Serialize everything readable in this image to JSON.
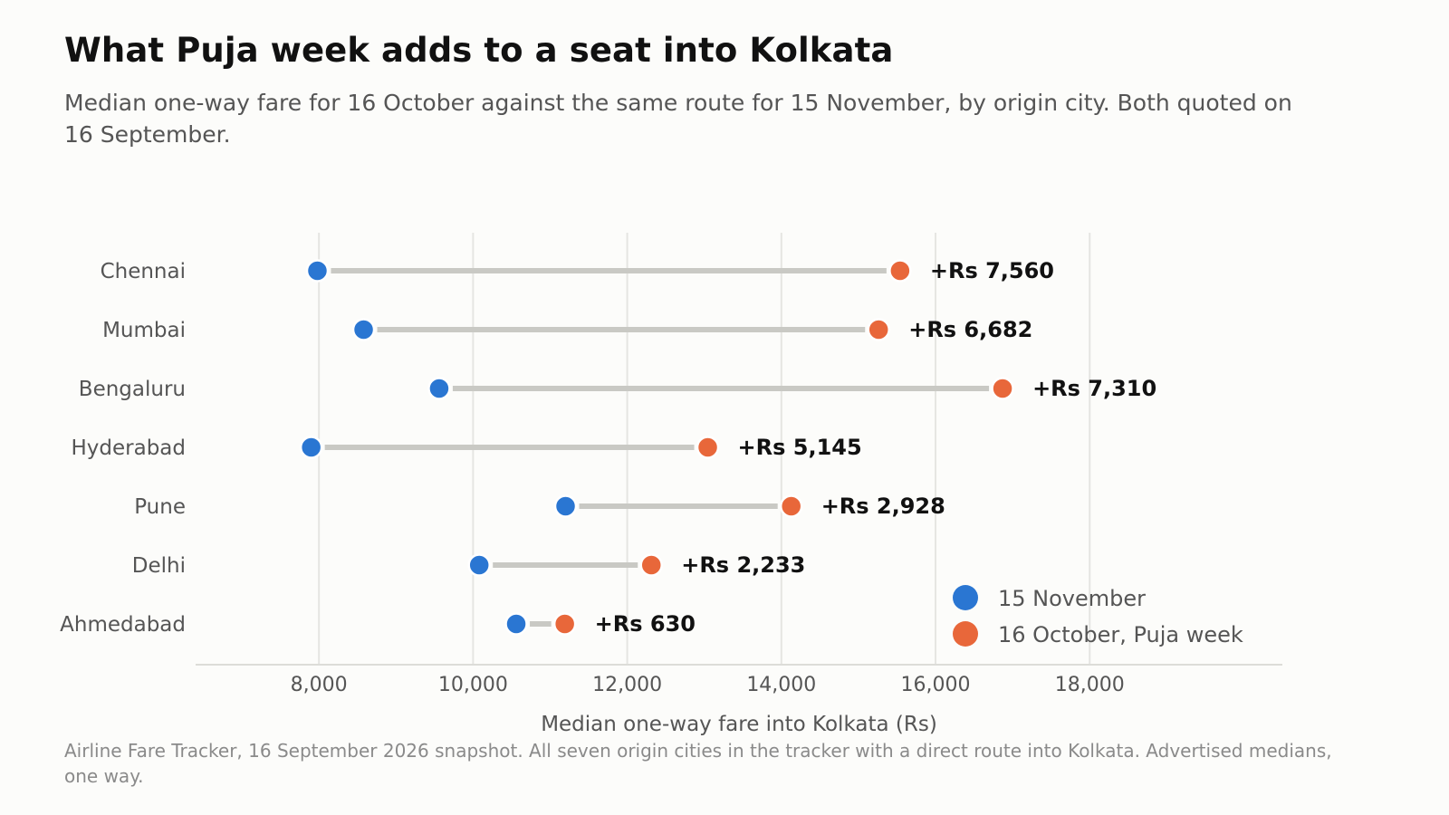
{
  "title": "What Puja week adds to a seat into Kolkata",
  "subtitle": "Median one-way fare for 16 October against the same route for 15 November, by origin city. Both quoted on 16 September.",
  "footer": "Airline Fare Tracker, 16 September 2026 snapshot. All seven origin cities in the tracker with a direct route into Kolkata. Advertised medians, one way.",
  "colors": {
    "nov": "#2a76d2",
    "oct": "#e8673a",
    "connector": "#c9c9c4",
    "grid": "#e5e5e2",
    "axis": "#dcdcd8",
    "background": "#fcfcfa"
  },
  "chart_data": {
    "type": "dumbbell",
    "xlabel": "Median one-way fare into Kolkata (Rs)",
    "xlim": [
      6400,
      20500
    ],
    "xticks": [
      8000,
      10000,
      12000,
      14000,
      16000,
      18000
    ],
    "xtick_labels": [
      "8,000",
      "10,000",
      "12,000",
      "14,000",
      "16,000",
      "18,000"
    ],
    "grid": "vertical",
    "legend_position": "bottom-right",
    "categories": [
      "Chennai",
      "Mumbai",
      "Bengaluru",
      "Hyderabad",
      "Pune",
      "Delhi",
      "Ahmedabad"
    ],
    "series": [
      {
        "name": "15 November",
        "values": [
          7980,
          8580,
          9560,
          7900,
          11200,
          10080,
          10560
        ]
      },
      {
        "name": "16 October, Puja week",
        "values": [
          15540,
          15262,
          16870,
          13045,
          14128,
          12313,
          11190
        ]
      }
    ],
    "difference_labels": [
      "+Rs 7,560",
      "+Rs 6,682",
      "+Rs 7,310",
      "+Rs 5,145",
      "+Rs 2,928",
      "+Rs 2,233",
      "+Rs 630"
    ]
  }
}
